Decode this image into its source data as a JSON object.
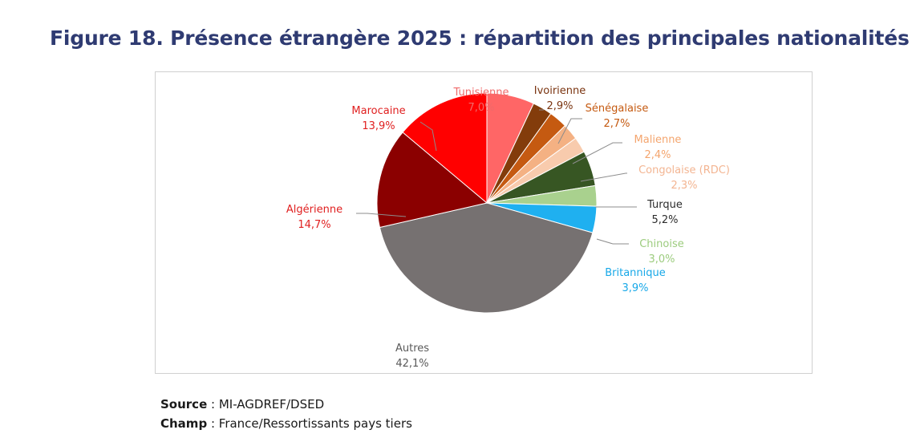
{
  "title": "Figure 18. Présence étrangère 2025 : répartition des principales nationalités",
  "chart_data": {
    "type": "pie",
    "title": "",
    "slices": [
      {
        "label": "Tunisienne",
        "value": 7.0,
        "value_text": "7,0%",
        "color": "#ff6666",
        "label_color": "#f06a6a"
      },
      {
        "label": "Ivoirienne",
        "value": 2.9,
        "value_text": "2,9%",
        "color": "#833c0b",
        "label_color": "#7a3410"
      },
      {
        "label": "Sénégalaise",
        "value": 2.7,
        "value_text": "2,7%",
        "color": "#c55a11",
        "label_color": "#c55a11"
      },
      {
        "label": "Malienne",
        "value": 2.4,
        "value_text": "2,4%",
        "color": "#f4b183",
        "label_color": "#f4a56e"
      },
      {
        "label": "Congolaise (RDC)",
        "value": 2.3,
        "value_text": "2,3%",
        "color": "#f8cbad",
        "label_color": "#f3b592"
      },
      {
        "label": "Turque",
        "value": 5.2,
        "value_text": "5,2%",
        "color": "#375623",
        "label_color": "#2c2c2c"
      },
      {
        "label": "Chinoise",
        "value": 3.0,
        "value_text": "3,0%",
        "color": "#a9d18e",
        "label_color": "#9ccc7e"
      },
      {
        "label": "Britannique",
        "value": 3.9,
        "value_text": "3,9%",
        "color": "#1fb0f0",
        "label_color": "#17a8e8"
      },
      {
        "label": "Autres",
        "value": 42.1,
        "value_text": "42,1%",
        "color": "#767171",
        "label_color": "#595959"
      },
      {
        "label": "Algérienne",
        "value": 14.7,
        "value_text": "14,7%",
        "color": "#8b0000",
        "label_color": "#e02020"
      },
      {
        "label": "Marocaine",
        "value": 13.9,
        "value_text": "13,9%",
        "color": "#ff0000",
        "label_color": "#e02020"
      }
    ]
  },
  "notes": {
    "source_label": "Source",
    "source_text": " : MI-AGDREF/DSED",
    "champ_label": "Champ",
    "champ_text": " : France/Ressortissants pays tiers"
  }
}
